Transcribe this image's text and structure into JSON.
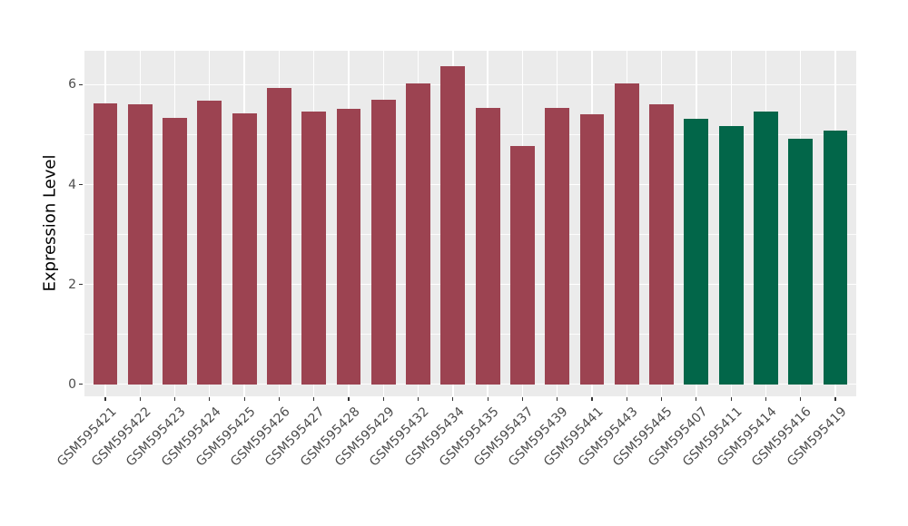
{
  "chart_data": {
    "type": "bar",
    "title": "",
    "xlabel": "",
    "ylabel": "Expression Level",
    "categories": [
      "GSM595421",
      "GSM595422",
      "GSM595423",
      "GSM595424",
      "GSM595425",
      "GSM595426",
      "GSM595427",
      "GSM595428",
      "GSM595429",
      "GSM595432",
      "GSM595434",
      "GSM595435",
      "GSM595437",
      "GSM595439",
      "GSM595441",
      "GSM595443",
      "GSM595445",
      "GSM595407",
      "GSM595411",
      "GSM595414",
      "GSM595416",
      "GSM595419"
    ],
    "values": [
      5.63,
      5.61,
      5.33,
      5.69,
      5.42,
      5.94,
      5.46,
      5.52,
      5.7,
      6.02,
      6.37,
      5.54,
      4.78,
      5.54,
      5.4,
      6.02,
      5.61,
      5.32,
      5.18,
      5.46,
      4.91,
      5.08
    ],
    "bar_colors": [
      "#9C4351",
      "#9C4351",
      "#9C4351",
      "#9C4351",
      "#9C4351",
      "#9C4351",
      "#9C4351",
      "#9C4351",
      "#9C4351",
      "#9C4351",
      "#9C4351",
      "#9C4351",
      "#9C4351",
      "#9C4351",
      "#9C4351",
      "#9C4351",
      "#9C4351",
      "#026649",
      "#026649",
      "#026649",
      "#026649",
      "#026649"
    ],
    "groups": [
      {
        "color": "#9C4351",
        "count": 17
      },
      {
        "color": "#026649",
        "count": 5
      }
    ],
    "ytick_labels": [
      "0",
      "2",
      "4",
      "6"
    ],
    "ytick_values": [
      0,
      2,
      4,
      6
    ],
    "minor_ytick_values": [
      1,
      3,
      5
    ],
    "ylim": [
      -0.24,
      6.68
    ],
    "bar_width_fraction": 0.7,
    "grid": true,
    "legend_position": "none",
    "panel_bg": "#EBEBEB",
    "grid_color": "#FFFFFF",
    "tick_label_color": "#4D4D4D",
    "axis_title_color": "#000000"
  }
}
